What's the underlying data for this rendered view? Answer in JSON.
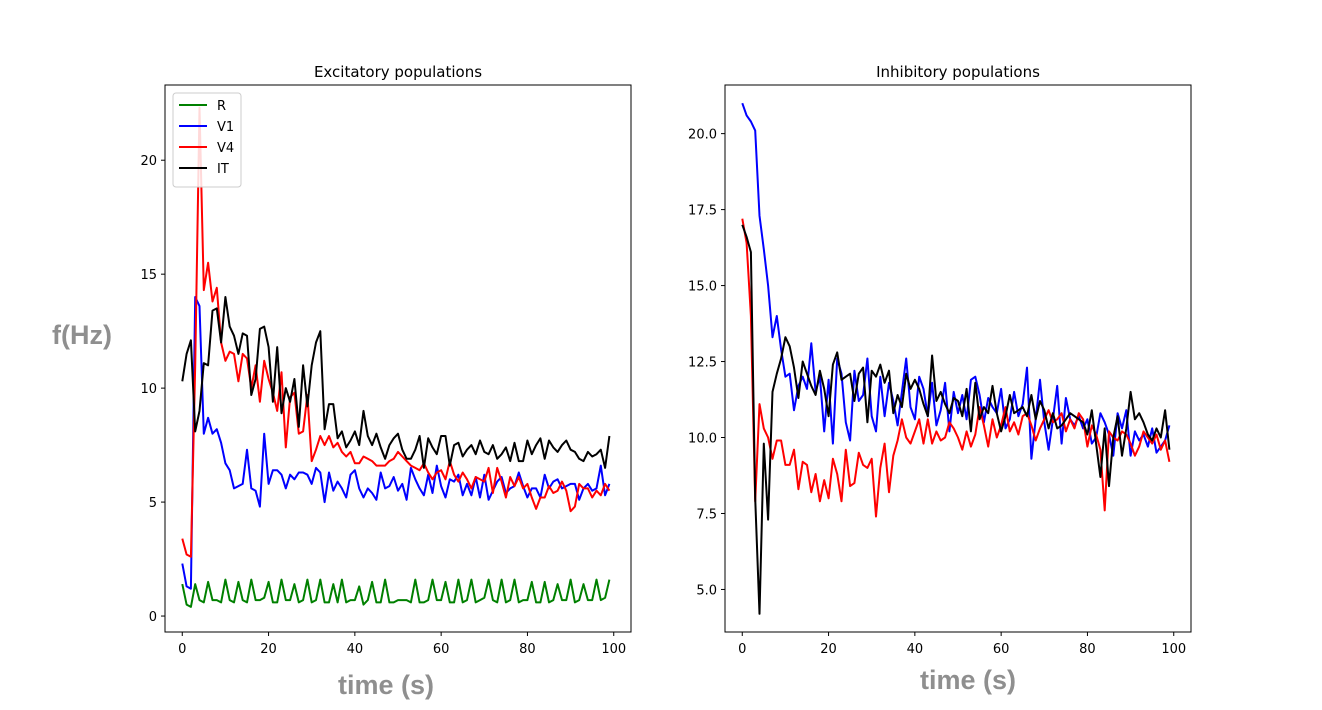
{
  "labels": {
    "ylabel": "f(Hz)",
    "xlabel_left": "time (s)",
    "xlabel_right": "time (s)"
  },
  "chart_data": [
    {
      "type": "line",
      "title": "Excitatory populations",
      "xlim": [
        -4,
        104
      ],
      "ylim": [
        -0.7,
        23.3
      ],
      "xticks": [
        0,
        20,
        40,
        60,
        80,
        100
      ],
      "yticks": [
        0,
        5,
        10,
        15,
        20
      ],
      "legend": "top-left",
      "series": [
        {
          "name": "R",
          "color": "#008000",
          "x_start": 0,
          "x_step": 1,
          "values": [
            1.4,
            0.5,
            0.4,
            1.4,
            0.7,
            0.6,
            1.5,
            0.7,
            0.7,
            0.6,
            1.6,
            0.7,
            0.6,
            1.5,
            0.7,
            0.6,
            1.6,
            0.7,
            0.7,
            0.8,
            1.5,
            0.6,
            0.6,
            1.6,
            0.7,
            0.7,
            1.4,
            0.6,
            0.7,
            1.6,
            0.6,
            0.7,
            1.6,
            0.6,
            0.6,
            1.4,
            0.6,
            1.6,
            0.6,
            0.7,
            0.7,
            1.3,
            0.5,
            0.7,
            1.5,
            0.6,
            0.6,
            1.6,
            0.6,
            0.6,
            0.7,
            0.7,
            0.7,
            0.6,
            1.6,
            0.6,
            0.6,
            0.7,
            1.6,
            0.7,
            0.7,
            1.5,
            0.6,
            0.6,
            1.6,
            0.6,
            0.7,
            1.6,
            0.6,
            0.7,
            0.8,
            1.6,
            0.7,
            0.6,
            1.6,
            0.6,
            0.7,
            1.6,
            0.6,
            0.7,
            0.7,
            1.5,
            0.6,
            0.6,
            1.5,
            0.6,
            0.7,
            1.4,
            0.7,
            0.7,
            1.6,
            0.6,
            0.7,
            1.4,
            0.7,
            0.7,
            1.6,
            0.7,
            0.8,
            1.6
          ]
        },
        {
          "name": "V1",
          "color": "#0000ff",
          "x_start": 0,
          "x_step": 1,
          "values": [
            2.3,
            1.3,
            1.2,
            14.0,
            13.6,
            8.0,
            8.7,
            8.0,
            8.2,
            7.6,
            6.7,
            6.4,
            5.6,
            5.7,
            5.8,
            7.3,
            5.6,
            5.5,
            4.8,
            8.0,
            5.8,
            6.4,
            6.4,
            6.2,
            5.6,
            6.2,
            6.0,
            6.3,
            6.3,
            6.2,
            5.8,
            6.5,
            6.3,
            5.0,
            6.3,
            5.5,
            5.9,
            5.6,
            5.2,
            6.2,
            6.4,
            5.6,
            5.2,
            5.6,
            5.4,
            5.1,
            6.3,
            5.6,
            5.7,
            6.1,
            5.5,
            5.8,
            5.1,
            6.5,
            6.0,
            5.6,
            5.3,
            6.2,
            5.4,
            6.6,
            5.7,
            5.2,
            6.0,
            5.9,
            6.2,
            5.3,
            5.8,
            5.3,
            6.1,
            5.2,
            6.2,
            5.1,
            5.5,
            5.9,
            6.1,
            5.4,
            5.6,
            5.7,
            6.3,
            5.7,
            5.2,
            5.6,
            5.6,
            5.2,
            6.2,
            5.6,
            5.9,
            6.0,
            5.6,
            5.7,
            5.8,
            5.8,
            5.1,
            5.6,
            5.8,
            5.5,
            5.6,
            6.6,
            5.3,
            5.8
          ]
        },
        {
          "name": "V4",
          "color": "#ff0000",
          "x_start": 0,
          "x_step": 1,
          "values": [
            3.4,
            2.7,
            2.6,
            11.0,
            22.3,
            14.3,
            15.5,
            13.8,
            14.4,
            12.0,
            11.2,
            11.6,
            11.5,
            10.3,
            11.5,
            11.3,
            10.0,
            11.0,
            9.4,
            11.2,
            10.4,
            9.8,
            9.0,
            10.7,
            7.4,
            9.6,
            9.8,
            8.0,
            8.1,
            9.7,
            6.8,
            7.3,
            7.9,
            7.5,
            7.9,
            7.4,
            7.6,
            7.2,
            7.0,
            7.2,
            6.7,
            6.7,
            7.0,
            6.9,
            6.8,
            6.6,
            6.6,
            6.6,
            6.8,
            6.9,
            7.2,
            7.0,
            6.8,
            6.6,
            6.5,
            6.4,
            6.7,
            6.3,
            6.0,
            6.3,
            6.4,
            6.0,
            6.8,
            6.2,
            5.9,
            6.3,
            6.0,
            5.6,
            6.1,
            6.0,
            5.9,
            6.5,
            5.4,
            6.5,
            5.9,
            5.2,
            6.1,
            5.7,
            6.1,
            5.6,
            5.8,
            5.2,
            4.7,
            5.2,
            5.2,
            5.7,
            5.4,
            5.5,
            5.9,
            5.5,
            4.6,
            4.8,
            5.8,
            5.6,
            5.6,
            5.2,
            5.5,
            5.3,
            5.8,
            5.5
          ]
        },
        {
          "name": "IT",
          "color": "#000000",
          "x_start": 0,
          "x_step": 1,
          "values": [
            10.3,
            11.5,
            12.1,
            8.1,
            9.0,
            11.1,
            11.0,
            13.4,
            13.5,
            12.0,
            14.0,
            12.7,
            12.3,
            11.5,
            12.4,
            12.3,
            9.7,
            10.4,
            12.6,
            12.7,
            11.8,
            9.4,
            11.8,
            8.9,
            10.0,
            9.4,
            10.4,
            8.3,
            11.0,
            9.2,
            11.0,
            12.0,
            12.5,
            8.2,
            9.3,
            9.3,
            7.8,
            8.1,
            7.4,
            7.7,
            8.1,
            7.5,
            9.0,
            7.9,
            7.5,
            8.0,
            7.4,
            6.9,
            7.5,
            7.8,
            8.0,
            7.3,
            6.9,
            6.9,
            7.3,
            7.9,
            6.5,
            7.8,
            7.4,
            7.1,
            7.9,
            7.9,
            6.6,
            7.5,
            7.6,
            7.0,
            7.3,
            7.5,
            7.1,
            7.7,
            7.2,
            7.1,
            7.5,
            6.9,
            7.1,
            7.4,
            6.8,
            7.6,
            6.8,
            6.8,
            7.7,
            7.1,
            7.5,
            7.8,
            6.9,
            7.7,
            7.4,
            7.2,
            7.5,
            7.7,
            7.3,
            7.2,
            6.9,
            6.8,
            7.2,
            7.0,
            7.1,
            7.3,
            6.5,
            7.9
          ]
        }
      ]
    },
    {
      "type": "line",
      "title": "Inhibitory populations",
      "xlim": [
        -4,
        104
      ],
      "ylim": [
        3.6,
        21.6
      ],
      "xticks": [
        0,
        20,
        40,
        60,
        80,
        100
      ],
      "yticks": [
        5.0,
        7.5,
        10.0,
        12.5,
        15.0,
        17.5,
        20.0
      ],
      "series": [
        {
          "name": "V1",
          "color": "#0000ff",
          "x_start": 0,
          "x_step": 1,
          "values": [
            21.0,
            20.6,
            20.4,
            20.1,
            17.3,
            16.2,
            15.0,
            13.3,
            14.0,
            12.9,
            12.0,
            12.1,
            10.9,
            11.7,
            12.0,
            11.6,
            13.1,
            11.5,
            12.0,
            10.2,
            11.9,
            9.8,
            12.6,
            12.1,
            10.5,
            9.9,
            12.2,
            11.2,
            11.4,
            12.6,
            10.7,
            10.2,
            12.0,
            10.7,
            11.8,
            11.2,
            10.4,
            11.5,
            12.6,
            11.0,
            10.6,
            12.0,
            11.6,
            10.7,
            11.8,
            10.4,
            10.9,
            11.8,
            10.2,
            11.5,
            10.8,
            11.4,
            10.6,
            11.9,
            12.0,
            11.4,
            10.5,
            11.3,
            11.0,
            10.8,
            11.6,
            10.3,
            10.6,
            11.5,
            10.7,
            11.1,
            12.3,
            9.3,
            10.6,
            11.9,
            10.5,
            9.6,
            10.6,
            11.7,
            9.8,
            11.3,
            10.6,
            10.4,
            10.7,
            10.3,
            10.6,
            9.8,
            10.0,
            10.8,
            10.5,
            10.1,
            9.4,
            10.8,
            10.3,
            10.9,
            9.4,
            10.2,
            9.9,
            10.1,
            9.7,
            10.3,
            9.5,
            9.7,
            9.9,
            10.4
          ]
        },
        {
          "name": "V4",
          "color": "#ff0000",
          "x_start": 0,
          "x_step": 1,
          "values": [
            17.2,
            16.4,
            14.0,
            7.9,
            11.1,
            10.3,
            10.0,
            9.3,
            9.9,
            9.9,
            9.1,
            9.1,
            9.6,
            8.3,
            9.2,
            9.1,
            8.2,
            8.8,
            7.9,
            8.6,
            8.0,
            9.3,
            8.8,
            7.9,
            9.6,
            8.4,
            8.5,
            9.5,
            9.1,
            9.0,
            9.3,
            7.4,
            9.0,
            9.8,
            8.2,
            9.4,
            9.9,
            10.6,
            10.0,
            9.8,
            10.2,
            10.6,
            9.8,
            10.6,
            9.8,
            10.2,
            9.9,
            10.0,
            10.5,
            10.3,
            10.0,
            9.6,
            10.2,
            9.7,
            10.1,
            11.0,
            10.4,
            9.7,
            10.6,
            10.0,
            10.4,
            11.0,
            10.2,
            10.5,
            10.1,
            10.7,
            10.8,
            10.4,
            9.9,
            10.3,
            10.6,
            10.9,
            10.5,
            10.6,
            10.8,
            10.2,
            10.6,
            10.3,
            10.8,
            10.6,
            9.7,
            10.4,
            10.1,
            9.6,
            7.6,
            10.2,
            10.0,
            9.9,
            10.2,
            10.1,
            9.8,
            9.4,
            9.7,
            10.2,
            10.0,
            9.8,
            10.1,
            9.6,
            9.9,
            9.2
          ]
        },
        {
          "name": "IT",
          "color": "#000000",
          "x_start": 0,
          "x_step": 1,
          "values": [
            17.0,
            16.6,
            16.1,
            8.0,
            4.2,
            9.8,
            7.3,
            11.5,
            12.1,
            12.6,
            13.3,
            13.0,
            12.3,
            11.3,
            12.5,
            12.1,
            11.7,
            11.4,
            12.2,
            11.6,
            10.7,
            12.4,
            12.8,
            11.9,
            12.0,
            12.1,
            11.2,
            12.1,
            12.3,
            10.5,
            12.2,
            12.0,
            12.4,
            11.8,
            12.2,
            10.8,
            11.4,
            11.0,
            12.1,
            11.6,
            11.9,
            11.6,
            11.1,
            10.7,
            12.7,
            11.2,
            11.5,
            11.1,
            10.8,
            11.3,
            11.2,
            10.7,
            11.6,
            10.2,
            11.8,
            10.6,
            11.0,
            10.8,
            11.7,
            10.8,
            10.2,
            10.7,
            11.4,
            10.8,
            10.9,
            11.0,
            10.7,
            11.4,
            10.6,
            11.2,
            10.9,
            10.3,
            10.8,
            10.3,
            10.4,
            10.6,
            10.8,
            10.7,
            10.6,
            10.5,
            10.1,
            10.9,
            9.8,
            8.7,
            10.3,
            8.4,
            10.0,
            10.7,
            9.4,
            10.3,
            11.5,
            10.6,
            10.8,
            10.5,
            10.1,
            9.9,
            10.3,
            10.0,
            10.9,
            9.6
          ]
        }
      ]
    }
  ]
}
